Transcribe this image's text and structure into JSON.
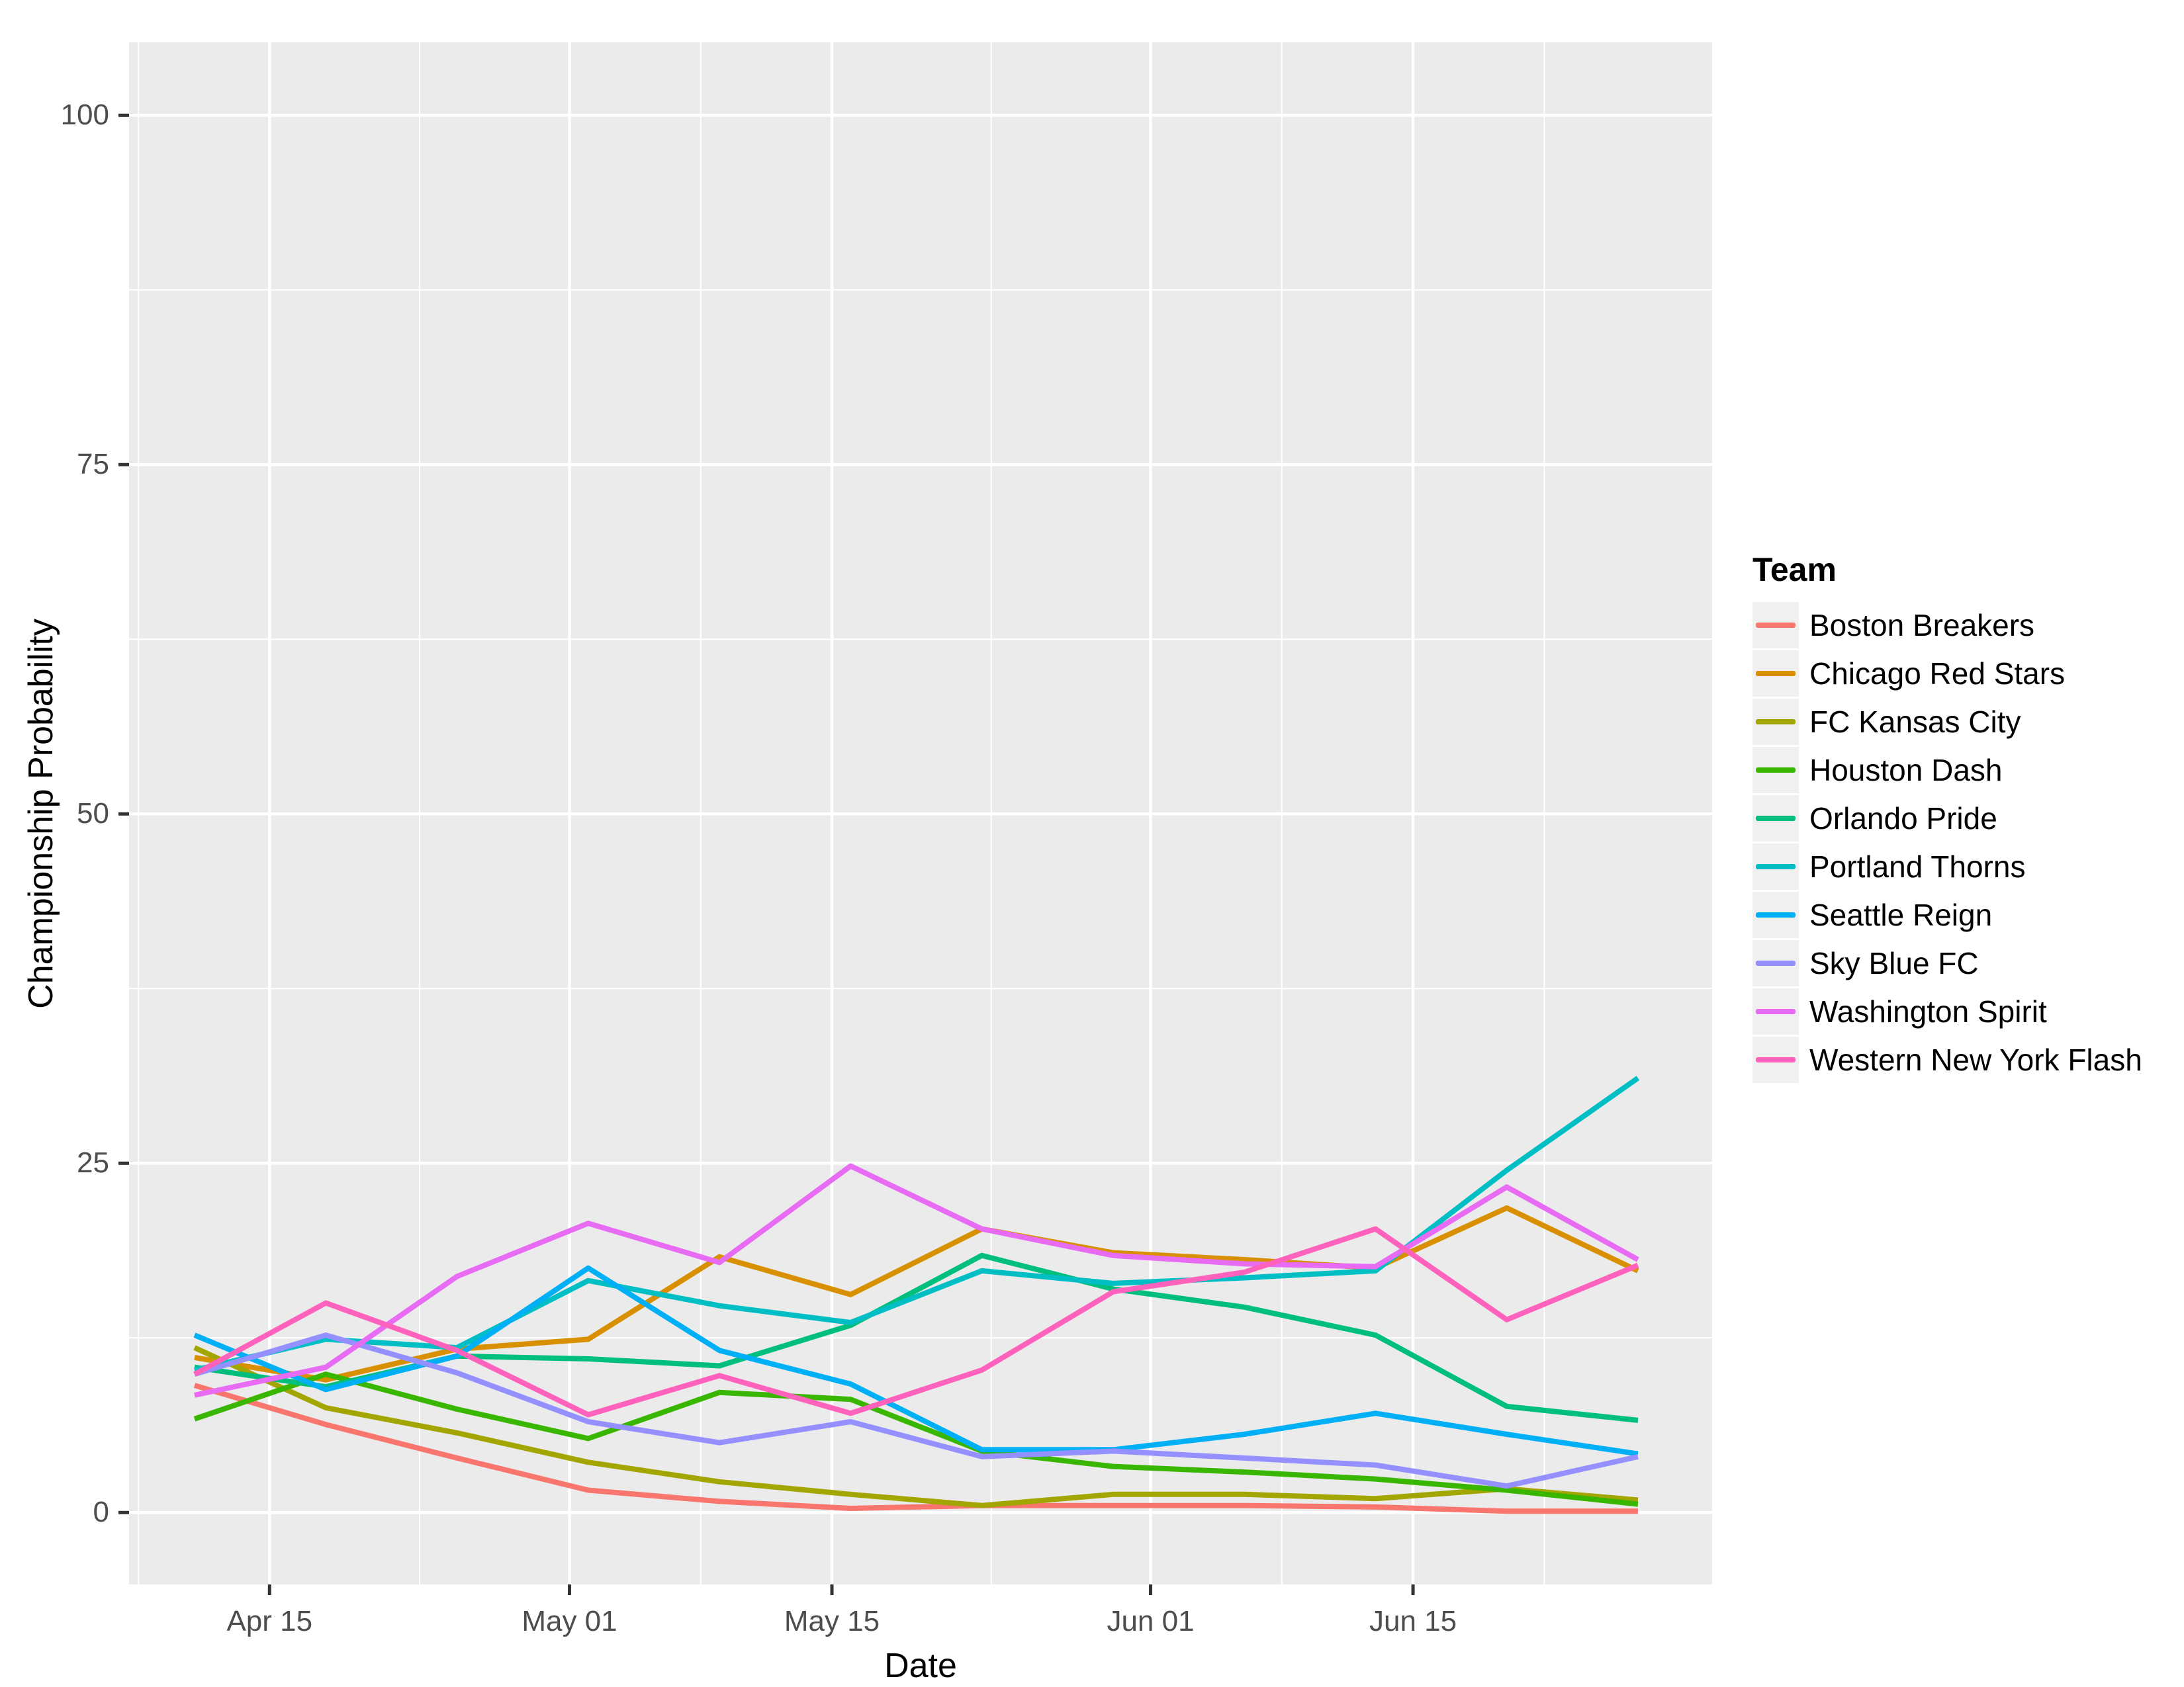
{
  "figure": {
    "background": "#ffffff",
    "panel_background": "#ebebeb",
    "gridline_color": "#ffffff",
    "tick_mark_color": "#333333",
    "tick_label_color": "#4d4d4d"
  },
  "axes": {
    "x_title": "Date",
    "y_title": "Championship Probability"
  },
  "legend": {
    "title": "Team"
  },
  "chart_data": {
    "type": "line",
    "title": "",
    "xlabel": "Date",
    "ylabel": "Championship Probability",
    "ylim": [
      0,
      100
    ],
    "grid": "on",
    "legend_position": "right",
    "legend_title": "Team",
    "y_major_ticks": [
      0,
      25,
      50,
      75,
      100
    ],
    "y_minor_ticks": [
      12.5,
      37.5,
      62.5,
      87.5
    ],
    "x_tick_labels": [
      "Apr 15",
      "May 01",
      "May 15",
      "Jun 01",
      "Jun 15"
    ],
    "x_tick_days": [
      4,
      20,
      34,
      51,
      65
    ],
    "x_minor_days": [
      -3,
      12,
      27,
      42.5,
      58,
      72
    ],
    "x": [
      "Apr 11",
      "Apr 18",
      "Apr 25",
      "May 02",
      "May 09",
      "May 16",
      "May 23",
      "May 30",
      "Jun 06",
      "Jun 13",
      "Jun 20",
      "Jun 27"
    ],
    "x_days": [
      0,
      7,
      14,
      21,
      28,
      35,
      42,
      49,
      56,
      63,
      70,
      77
    ],
    "series": [
      {
        "name": "Boston Breakers",
        "color": "#F8766D",
        "values": [
          9.1,
          6.3,
          3.9,
          1.6,
          0.8,
          0.3,
          0.5,
          0.5,
          0.5,
          0.4,
          0.1,
          0.1
        ]
      },
      {
        "name": "Chicago Red Stars",
        "color": "#D89000",
        "values": [
          11.1,
          9.5,
          11.7,
          12.4,
          18.3,
          15.6,
          20.3,
          18.6,
          18.1,
          17.5,
          21.8,
          17.3
        ]
      },
      {
        "name": "FC Kansas City",
        "color": "#A3A500",
        "values": [
          11.8,
          7.5,
          5.7,
          3.6,
          2.2,
          1.3,
          0.5,
          1.3,
          1.3,
          1.0,
          1.7,
          0.9
        ]
      },
      {
        "name": "Houston Dash",
        "color": "#39B600",
        "values": [
          6.7,
          9.9,
          7.4,
          5.3,
          8.6,
          8.1,
          4.4,
          3.3,
          2.9,
          2.4,
          1.6,
          0.6
        ]
      },
      {
        "name": "Orlando Pride",
        "color": "#00BF7D",
        "values": [
          10.4,
          9.0,
          11.2,
          11.0,
          10.5,
          13.4,
          18.4,
          16.0,
          14.7,
          12.7,
          7.6,
          6.6
        ]
      },
      {
        "name": "Portland Thorns",
        "color": "#00BFC4",
        "values": [
          10.2,
          12.4,
          11.8,
          16.6,
          14.8,
          13.6,
          17.3,
          16.4,
          16.8,
          17.3,
          24.5,
          31.1
        ]
      },
      {
        "name": "Seattle Reign",
        "color": "#00B0F6",
        "values": [
          12.7,
          8.8,
          11.2,
          17.5,
          11.6,
          9.2,
          4.5,
          4.5,
          5.6,
          7.1,
          5.6,
          4.2
        ]
      },
      {
        "name": "Sky Blue FC",
        "color": "#9590FF",
        "values": [
          9.9,
          12.7,
          10.0,
          6.5,
          5.0,
          6.5,
          4.0,
          4.4,
          3.9,
          3.4,
          1.9,
          4.0
        ]
      },
      {
        "name": "Washington Spirit",
        "color": "#E76BF3",
        "values": [
          8.4,
          10.4,
          16.9,
          20.7,
          17.9,
          24.8,
          20.3,
          18.4,
          17.8,
          17.6,
          23.3,
          18.1
        ]
      },
      {
        "name": "Western New York Flash",
        "color": "#FF62BC",
        "values": [
          9.9,
          15.0,
          11.6,
          7.0,
          9.8,
          7.1,
          10.2,
          15.8,
          17.2,
          20.3,
          13.8,
          17.7
        ]
      }
    ]
  }
}
